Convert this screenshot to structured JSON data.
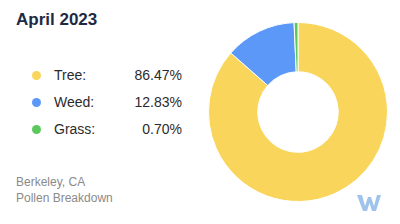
{
  "chart_data": {
    "type": "doughnut",
    "title": "April 2023",
    "categories": [
      "Tree:",
      "Weed:",
      "Grass:"
    ],
    "values": [
      86.47,
      12.83,
      0.7
    ],
    "value_labels": [
      "86.47%",
      "12.83%",
      "0.70%"
    ],
    "colors": [
      "#f9d55b",
      "#5b98f8",
      "#5cc85c"
    ],
    "legend": "left",
    "annotations": [
      "Berkeley, CA",
      "Pollen Breakdown"
    ]
  }
}
